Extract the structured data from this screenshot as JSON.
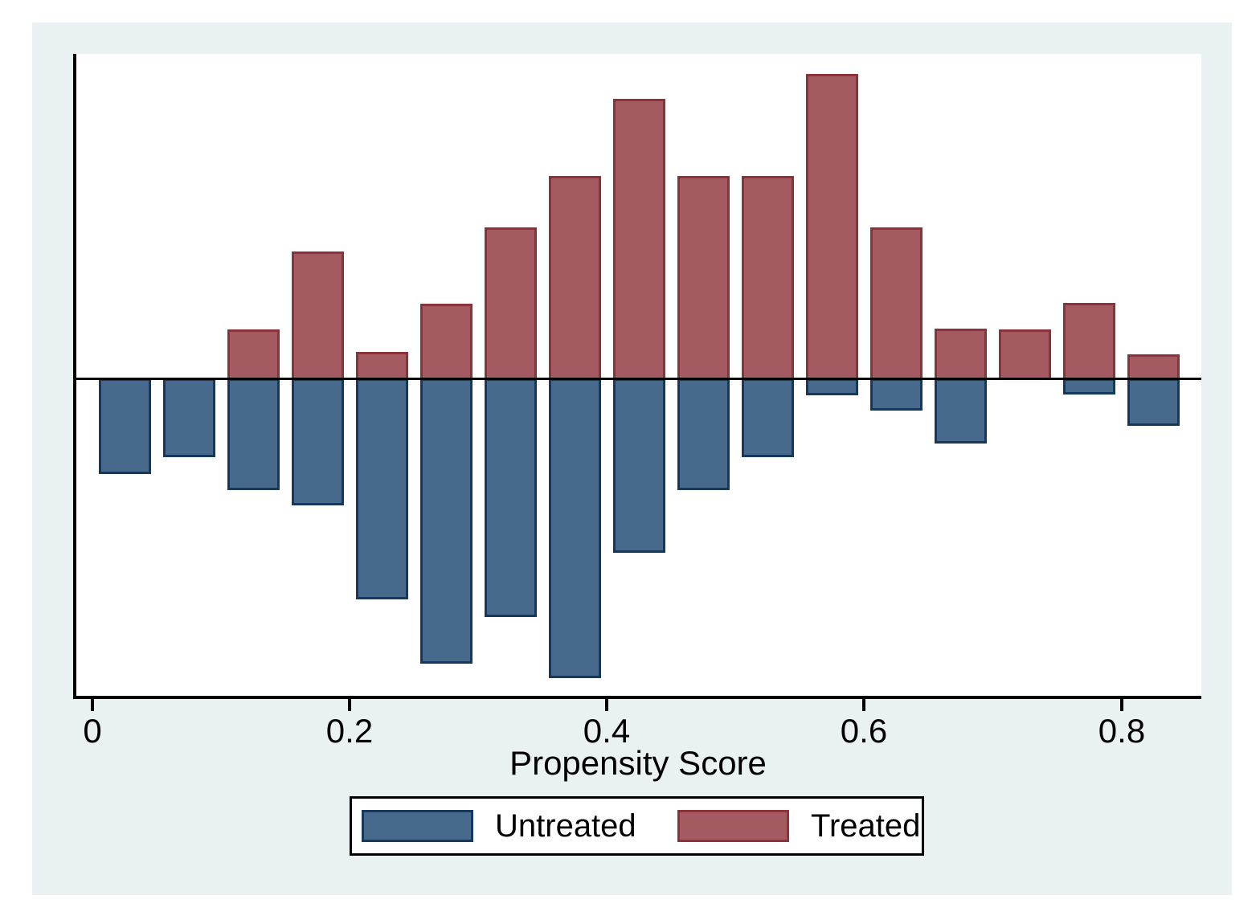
{
  "figure": {
    "background": "#ffffff",
    "canvas_bg": "#eaf1f3",
    "plot_bg": "#ffffff",
    "axis_color": "#000000"
  },
  "chart_data": {
    "type": "bar",
    "subtype": "diverging-histogram",
    "title": "",
    "xlabel": "Propensity Score",
    "ylabel": "",
    "x_ticks": [
      0,
      0.2,
      0.4,
      0.6,
      0.8
    ],
    "x_tick_labels": [
      "0",
      "0.2",
      "0.4",
      "0.6",
      "0.8"
    ],
    "xlim": [
      -0.014,
      0.862
    ],
    "y_axis_labeled": false,
    "bin_width": 0.05,
    "bar_width_units": 0.04,
    "categories": [
      0.025,
      0.075,
      0.125,
      0.175,
      0.225,
      0.275,
      0.325,
      0.375,
      0.425,
      0.475,
      0.525,
      0.575,
      0.625,
      0.675,
      0.725,
      0.775,
      0.825
    ],
    "series": [
      {
        "name": "Treated",
        "direction": "up",
        "fill": "#a35a60",
        "stroke": "#8b3338",
        "values": [
          0,
          0,
          0.155,
          0.398,
          0.085,
          0.235,
          0.473,
          0.633,
          0.873,
          0.633,
          0.633,
          0.95,
          0.473,
          0.158,
          0.155,
          0.238,
          0.078
        ]
      },
      {
        "name": "Untreated",
        "direction": "down",
        "fill": "#46698c",
        "stroke": "#15395c",
        "values": [
          0.295,
          0.243,
          0.345,
          0.393,
          0.685,
          0.885,
          0.74,
          0.93,
          0.54,
          0.345,
          0.243,
          0.05,
          0.098,
          0.2,
          0,
          0.048,
          0.145
        ]
      }
    ]
  },
  "legend": {
    "items": [
      {
        "label": "Untreated",
        "fill": "#46698c",
        "stroke": "#15395c"
      },
      {
        "label": "Treated",
        "fill": "#a35a60",
        "stroke": "#8b3338"
      }
    ]
  }
}
